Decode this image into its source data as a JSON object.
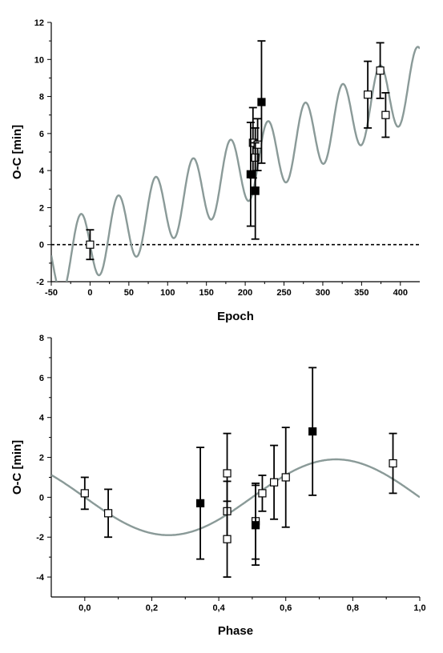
{
  "chart_data": [
    {
      "type": "scatter",
      "xlabel": "Epoch",
      "ylabel": "O-C [min]",
      "xlim": [
        -50,
        425
      ],
      "ylim": [
        -2,
        12
      ],
      "xticks": [
        -50,
        0,
        50,
        100,
        150,
        200,
        250,
        300,
        350,
        400
      ],
      "xtick_labels": [
        "-50",
        "0",
        "50",
        "100",
        "150",
        "200",
        "250",
        "300",
        "350",
        "400"
      ],
      "yticks": [
        -2,
        0,
        2,
        4,
        6,
        8,
        10,
        12
      ],
      "ytick_labels": [
        "-2",
        "0",
        "2",
        "4",
        "6",
        "8",
        "10",
        "12"
      ],
      "reference_line": {
        "y": 0,
        "style": "dashed"
      },
      "model_curve": {
        "description_color": "#8a9a98",
        "form": "linear trend plus sinusoid",
        "slope_per_epoch": 0.0208,
        "amplitude_min": 1.9,
        "period_epochs": 48.2,
        "phase_zero_epoch": -24
      },
      "series": [
        {
          "marker": "open-square",
          "points": [
            {
              "x": 0,
              "y": 0.0,
              "err": 0.8
            },
            {
              "x": 210,
              "y": 5.5,
              "err": 1.9
            },
            {
              "x": 213,
              "y": 4.7,
              "err": 1.6
            },
            {
              "x": 216,
              "y": 5.4,
              "err": 1.4
            },
            {
              "x": 358,
              "y": 8.1,
              "err": 1.8
            },
            {
              "x": 374,
              "y": 9.4,
              "err": 1.5
            },
            {
              "x": 381,
              "y": 7.0,
              "err": 1.2
            }
          ]
        },
        {
          "marker": "filled-square",
          "points": [
            {
              "x": 207,
              "y": 3.8,
              "err": 2.8
            },
            {
              "x": 213,
              "y": 2.9,
              "err": 2.6
            },
            {
              "x": 221,
              "y": 7.7,
              "err": 3.3
            }
          ]
        }
      ]
    },
    {
      "type": "scatter",
      "xlabel": "Phase",
      "ylabel": "O-C [min]",
      "xlim": [
        -0.1,
        1.0
      ],
      "ylim": [
        -5,
        8
      ],
      "xticks": [
        0.0,
        0.2,
        0.4,
        0.6,
        0.8,
        1.0
      ],
      "xtick_labels": [
        "0,0",
        "0,2",
        "0,4",
        "0,6",
        "0,8",
        "1,0"
      ],
      "yticks": [
        -4,
        -2,
        0,
        2,
        4,
        6,
        8
      ],
      "ytick_labels": [
        "-4",
        "-2",
        "0",
        "2",
        "4",
        "6",
        "8"
      ],
      "model_curve": {
        "description_color": "#8a9a98",
        "form": "sinusoid",
        "amplitude_min": 1.9,
        "period_phase": 1.0,
        "minimum_at_phase": 0.25
      },
      "series": [
        {
          "marker": "open-square",
          "points": [
            {
              "x": 0.0,
              "y": 0.2,
              "err": 0.8
            },
            {
              "x": 0.07,
              "y": -0.8,
              "err": 1.2
            },
            {
              "x": 0.425,
              "y": 1.2,
              "err": 2.0
            },
            {
              "x": 0.425,
              "y": -0.7,
              "err": 1.5
            },
            {
              "x": 0.425,
              "y": -2.1,
              "err": 1.9
            },
            {
              "x": 0.51,
              "y": -1.2,
              "err": 1.9
            },
            {
              "x": 0.53,
              "y": 0.2,
              "err": 0.9
            },
            {
              "x": 0.565,
              "y": 0.75,
              "err": 1.85
            },
            {
              "x": 0.6,
              "y": 1.0,
              "err": 2.5
            },
            {
              "x": 0.92,
              "y": 1.7,
              "err": 1.5
            }
          ]
        },
        {
          "marker": "filled-square",
          "points": [
            {
              "x": 0.345,
              "y": -0.3,
              "err": 2.8
            },
            {
              "x": 0.51,
              "y": -1.4,
              "err": 2.0
            },
            {
              "x": 0.68,
              "y": 3.3,
              "err": 3.2
            }
          ]
        }
      ]
    }
  ]
}
